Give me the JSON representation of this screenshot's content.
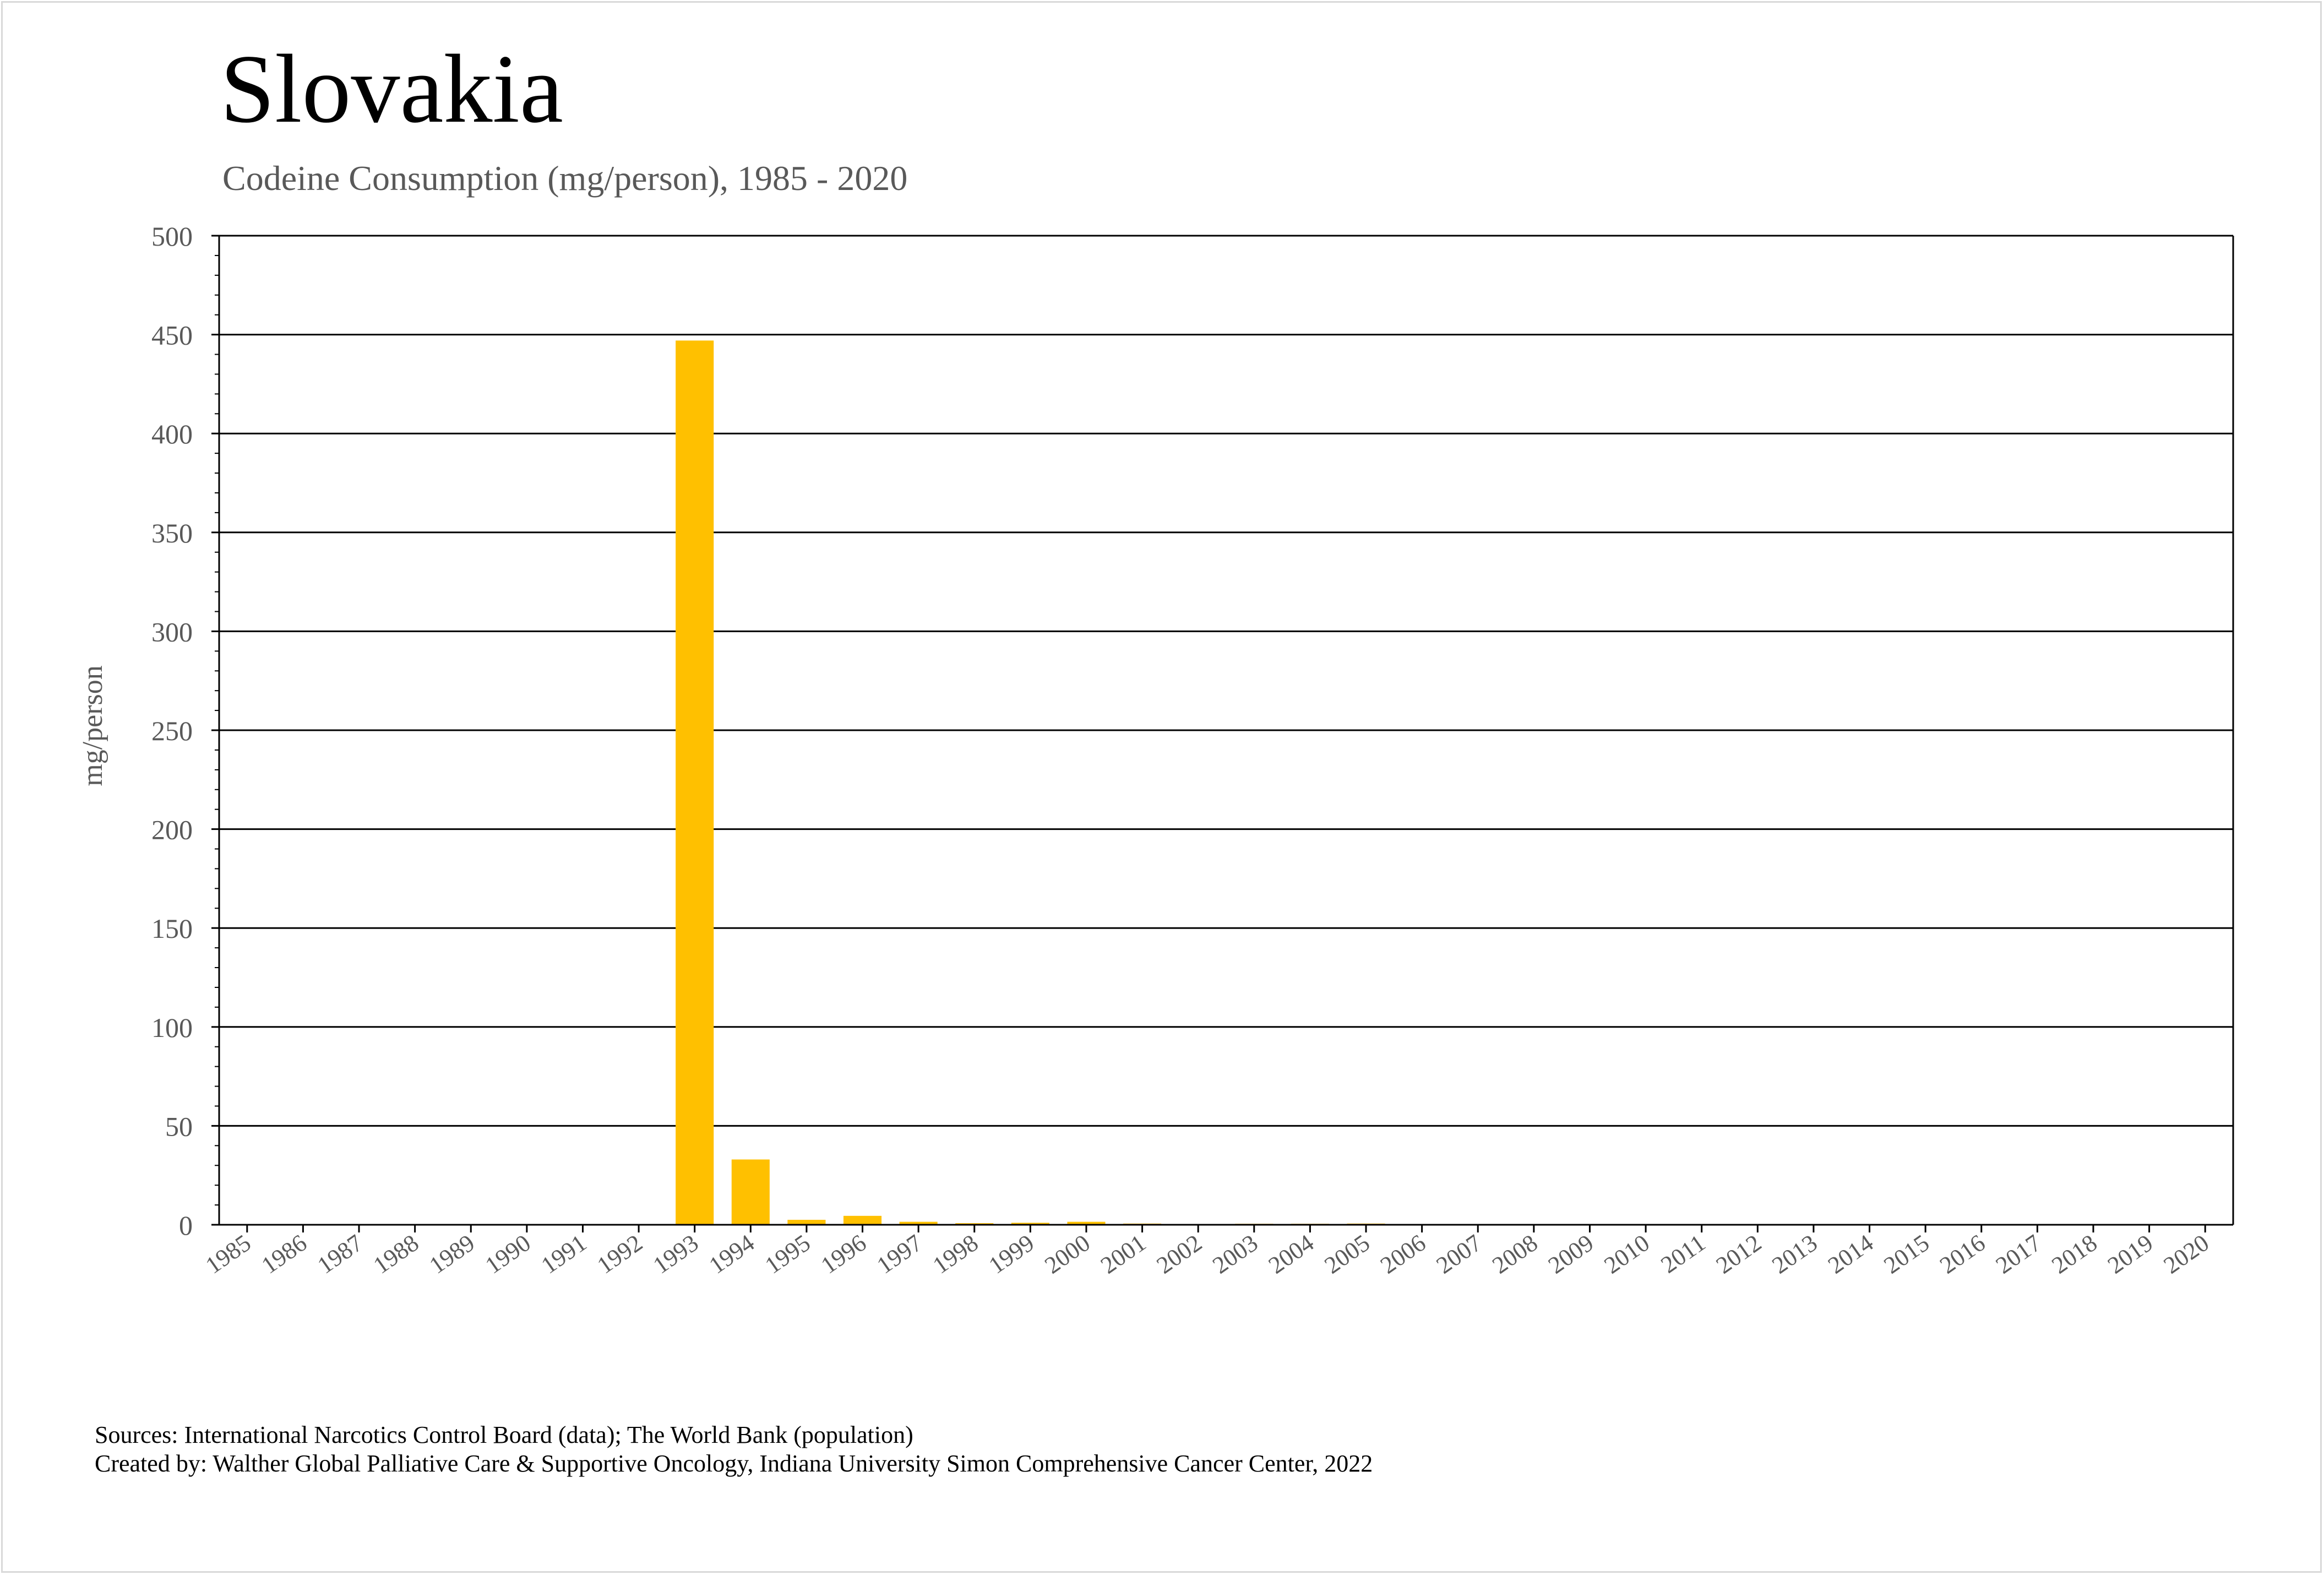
{
  "title": "Slovakia",
  "subtitle": "Codeine Consumption (mg/person), 1985 - 2020",
  "footer": {
    "sources": "Sources: International Narcotics Control Board (data); The World Bank (population)",
    "created_by": "Created by: Walther Global Palliative Care & Supportive Oncology, Indiana University Simon Comprehensive Cancer Center, 2022"
  },
  "colors": {
    "bar": "#FFC000",
    "gridline": "#000000",
    "axis_text": "#595959"
  },
  "chart_data": {
    "type": "bar",
    "title": "Slovakia",
    "subtitle": "Codeine Consumption (mg/person), 1985 - 2020",
    "xlabel": "",
    "ylabel": "mg/person",
    "ylim": [
      0,
      500
    ],
    "yticks": [
      0,
      50,
      100,
      150,
      200,
      250,
      300,
      350,
      400,
      450,
      500
    ],
    "grid": true,
    "legend": "none",
    "categories": [
      "1985",
      "1986",
      "1987",
      "1988",
      "1989",
      "1990",
      "1991",
      "1992",
      "1993",
      "1994",
      "1995",
      "1996",
      "1997",
      "1998",
      "1999",
      "2000",
      "2001",
      "2002",
      "2003",
      "2004",
      "2005",
      "2006",
      "2007",
      "2008",
      "2009",
      "2010",
      "2011",
      "2012",
      "2013",
      "2014",
      "2015",
      "2016",
      "2017",
      "2018",
      "2019",
      "2020"
    ],
    "values": [
      0,
      0,
      0,
      0,
      0,
      0,
      0,
      0,
      447,
      33,
      2.5,
      4.5,
      1.5,
      0.8,
      1.0,
      1.5,
      0.6,
      0.4,
      0.5,
      0.5,
      0.6,
      0.4,
      0.4,
      0.4,
      0.4,
      0.3,
      0.3,
      0.4,
      0.3,
      0.3,
      0.4,
      0.3,
      0.3,
      0.3,
      0.3,
      0.3
    ]
  }
}
